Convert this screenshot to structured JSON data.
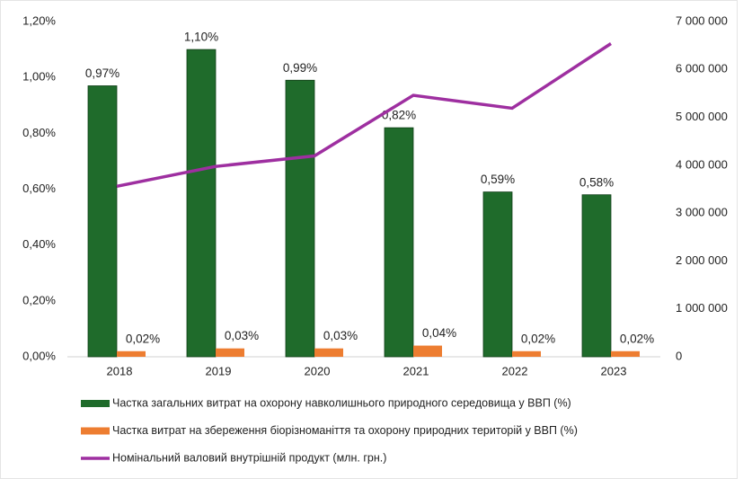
{
  "chart_data": {
    "type": "bar",
    "categories": [
      "2018",
      "2019",
      "2020",
      "2021",
      "2022",
      "2023"
    ],
    "series": [
      {
        "name": "Частка загальних витрат на охорону навколишнього природного середовища у ВВП (%)",
        "color": "#1f6b2b",
        "type": "bar",
        "values": [
          0.97,
          1.1,
          0.99,
          0.82,
          0.59,
          0.58
        ],
        "value_labels": [
          "0,97%",
          "1,10%",
          "0,99%",
          "0,82%",
          "0,59%",
          "0,58%"
        ]
      },
      {
        "name": "Частка витрат на збереження біорізноманіття та охорону природних територій у ВВП (%)",
        "color": "#ed7d31",
        "type": "bar",
        "values": [
          0.02,
          0.03,
          0.03,
          0.04,
          0.02,
          0.02
        ],
        "value_labels": [
          "0,02%",
          "0,03%",
          "0,03%",
          "0,04%",
          "0,02%",
          "0,02%"
        ]
      },
      {
        "name": "Номінальний валовий внутрішній продукт (млн. грн.)",
        "color": "#9e2fa0",
        "type": "line",
        "axis": "y2",
        "values": [
          3560000,
          3975000,
          4195000,
          5460000,
          5190000,
          6540000
        ]
      }
    ],
    "ylim": [
      0,
      1.2
    ],
    "yticks": [
      {
        "value": 0,
        "label": "0,00%"
      },
      {
        "value": 0.2,
        "label": "0,20%"
      },
      {
        "value": 0.4,
        "label": "0,40%"
      },
      {
        "value": 0.6,
        "label": "0,60%"
      },
      {
        "value": 0.8,
        "label": "0,80%"
      },
      {
        "value": 1.0,
        "label": "1,00%"
      },
      {
        "value": 1.2,
        "label": "1,20%"
      }
    ],
    "y2lim": [
      0,
      7000000
    ],
    "y2ticks": [
      0,
      {
        "value": 1000000,
        "label": "1 000 000"
      },
      {
        "value": 2000000,
        "label": "2 000 000"
      },
      {
        "value": 3000000,
        "label": "3 000 000"
      },
      {
        "value": 4000000,
        "label": "4 000 000"
      },
      {
        "value": 5000000,
        "label": "5 000 000"
      },
      {
        "value": 6000000,
        "label": "6 000 000"
      },
      {
        "value": 7000000,
        "label": "7 000 000"
      }
    ],
    "grid": false,
    "legend": "bottom"
  }
}
